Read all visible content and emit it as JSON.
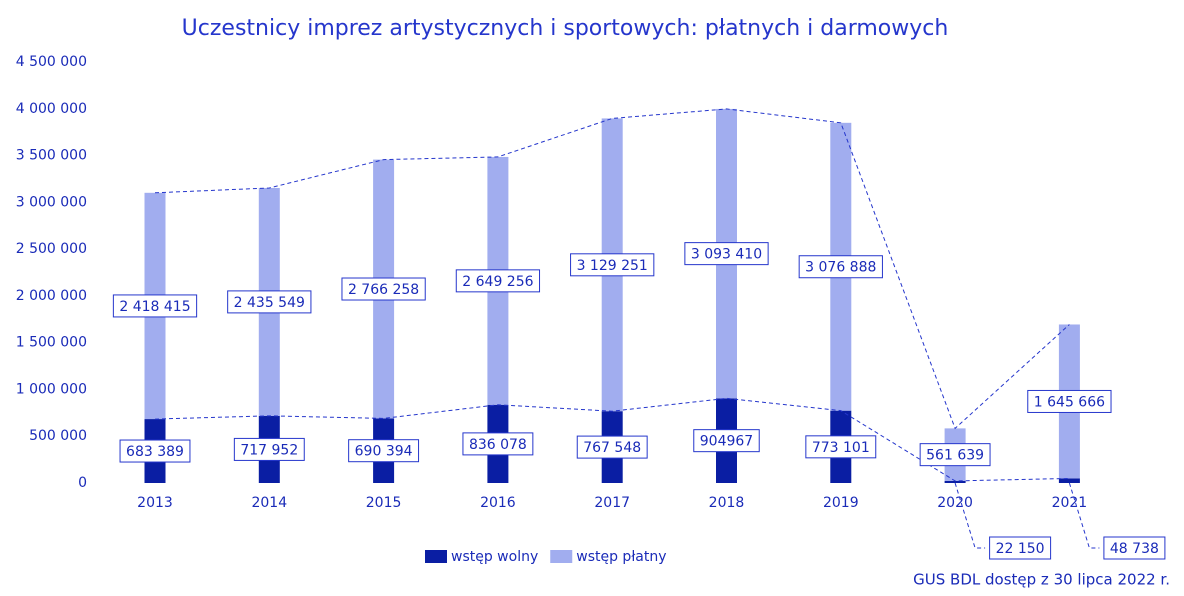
{
  "chart_data": {
    "type": "bar",
    "title": "Uczestnicy imprez artystycznych i sportowych: płatnych i darmowych",
    "categories": [
      "2013",
      "2014",
      "2015",
      "2016",
      "2017",
      "2018",
      "2019",
      "2020",
      "2021"
    ],
    "stacked": true,
    "series": [
      {
        "name": "wstęp wolny",
        "color": "#0a1ea3",
        "values": [
          683389,
          717952,
          690394,
          836078,
          767548,
          904967,
          773101,
          22150,
          48738
        ],
        "value_labels": [
          "683 389",
          "717 952",
          "690 394",
          "836 078",
          "767 548",
          "904967",
          "773 101",
          "22 150",
          "48 738"
        ]
      },
      {
        "name": "wstęp płatny",
        "color": "#a1adef",
        "values": [
          2418415,
          2435549,
          2766258,
          2649256,
          3129251,
          3093410,
          3076888,
          561639,
          1645666
        ],
        "value_labels": [
          "2 418 415",
          "2 435 549",
          "2 766 258",
          "2 649 256",
          "3 129 251",
          "3 093 410",
          "3 076 888",
          "561 639",
          "1 645 666"
        ]
      }
    ],
    "ylim": [
      0,
      4500000
    ],
    "yticks": [
      0,
      {
        "value": 500000,
        "label": "500 000"
      },
      {
        "value": 1000000,
        "label": "1 000 000"
      },
      {
        "value": 1500000,
        "label": "1 500 000"
      },
      {
        "value": 2000000,
        "label": "2 000 000"
      },
      {
        "value": 2500000,
        "label": "2 500 000"
      },
      {
        "value": 3000000,
        "label": "3 000 000"
      },
      {
        "value": 3500000,
        "label": "3 500 000"
      },
      {
        "value": 4000000,
        "label": "4 000 000"
      },
      {
        "value": 4500000,
        "label": "4 500 000"
      }
    ],
    "grid": false,
    "legend": "bottom",
    "source": "GUS BDL dostęp z 30 lipca 2022 r."
  }
}
